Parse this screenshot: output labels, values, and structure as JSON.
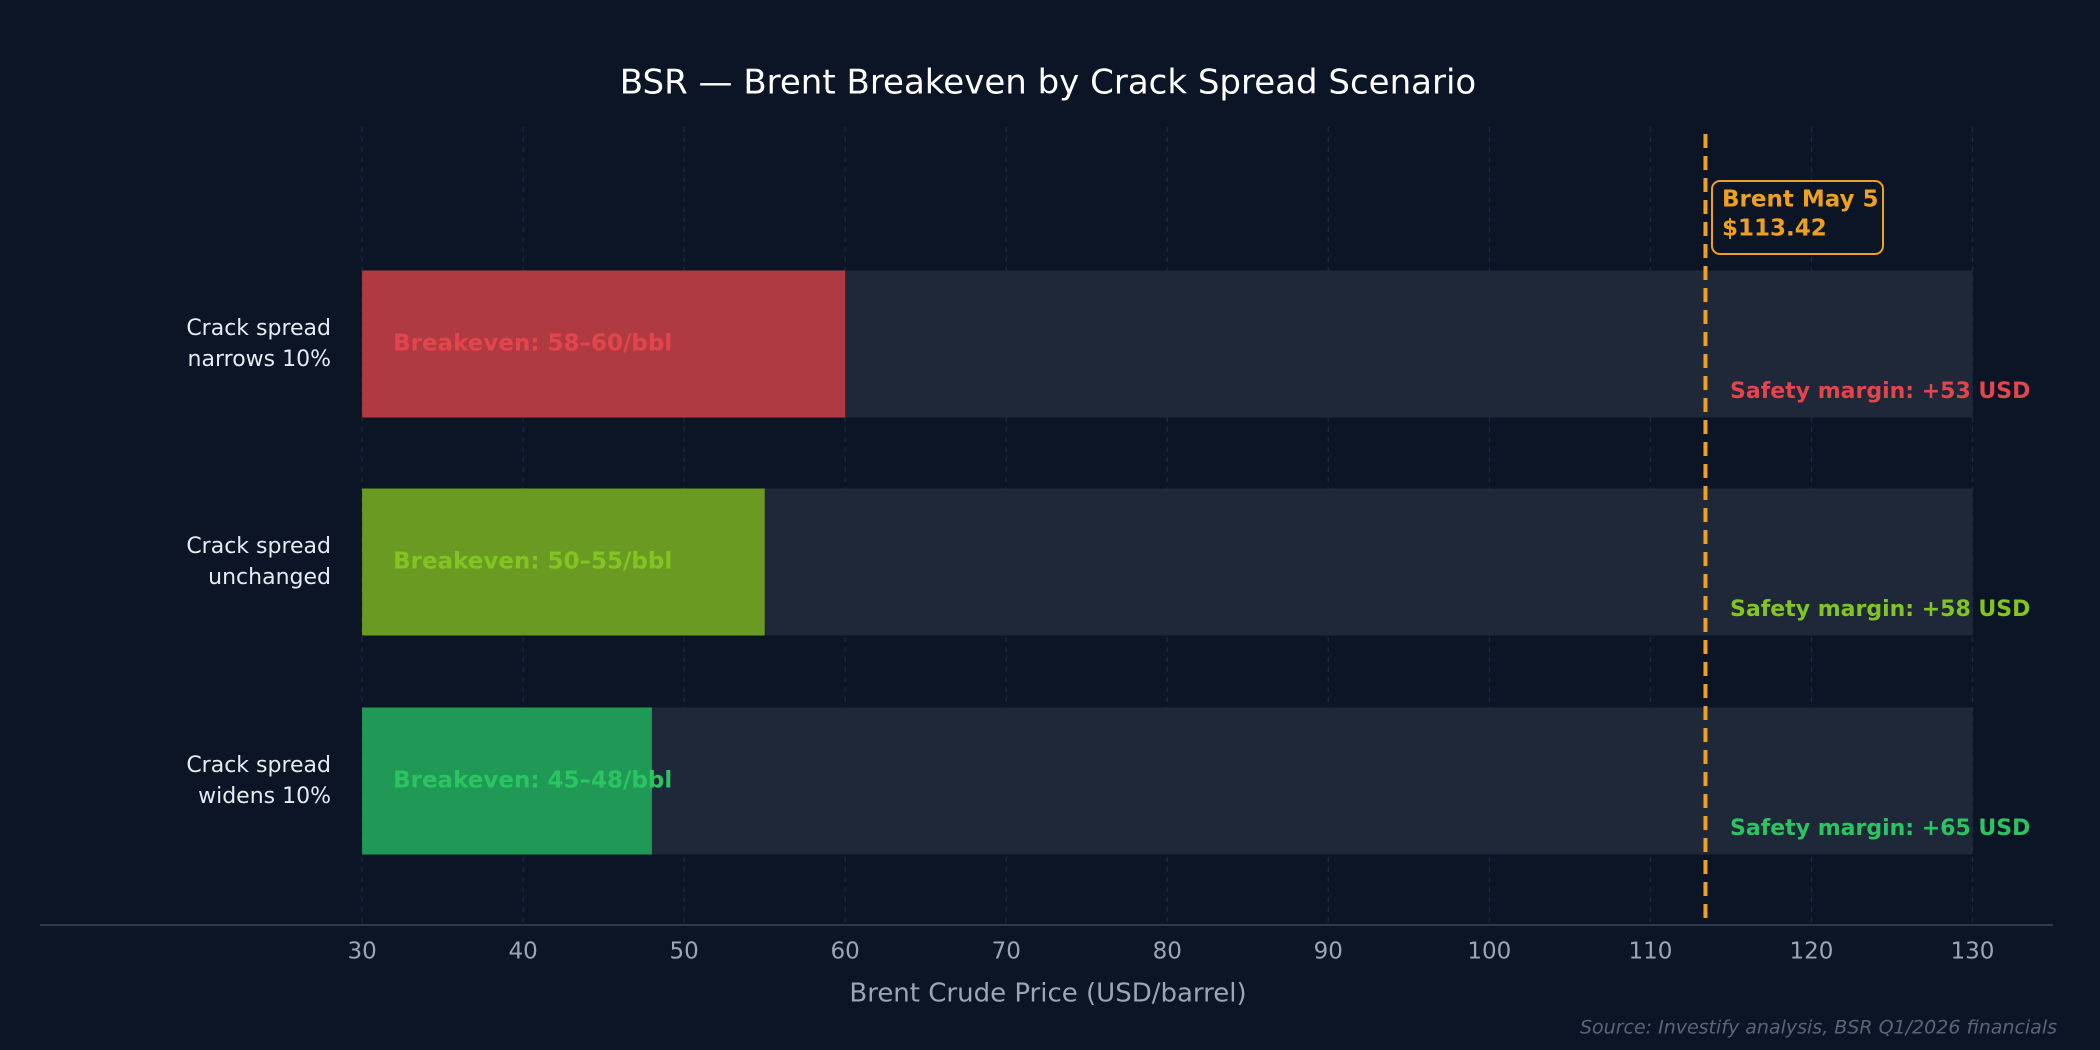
{
  "chart_data": {
    "type": "bar",
    "orientation": "horizontal",
    "title": "BSR — Brent Breakeven by Crack Spread Scenario",
    "x_label": "Brent Crude Price (USD/barrel)",
    "source": "Source: Investify analysis, BSR Q1/2026 financials",
    "categories": [
      "Crack spread narrows 10%",
      "Crack spread unchanged",
      "Crack spread widens 10%"
    ],
    "values": [
      60,
      55,
      48
    ],
    "value_labels": [
      "Breakeven: 58–60/bbl",
      "Breakeven: 50–55/bbl",
      "Breakeven: 45–48/bbl"
    ],
    "colors": [
      "#b03a42",
      "#6a9a22",
      "#1f9955"
    ],
    "label_colors": [
      "#e2454b",
      "#82c522",
      "#2cc462"
    ],
    "margin_labels": [
      "Safety margin: +53 USD",
      "Safety margin: +58 USD",
      "Safety margin: +65 USD"
    ],
    "reference": {
      "value": 113.42,
      "label": [
        "Brent May 5",
        "$113.42"
      ],
      "color": "#f0a020"
    },
    "xlim": [
      10,
      135
    ],
    "xticks": [
      30,
      40,
      50,
      60,
      70,
      80,
      90,
      100,
      110,
      120,
      130
    ],
    "grid": true
  }
}
